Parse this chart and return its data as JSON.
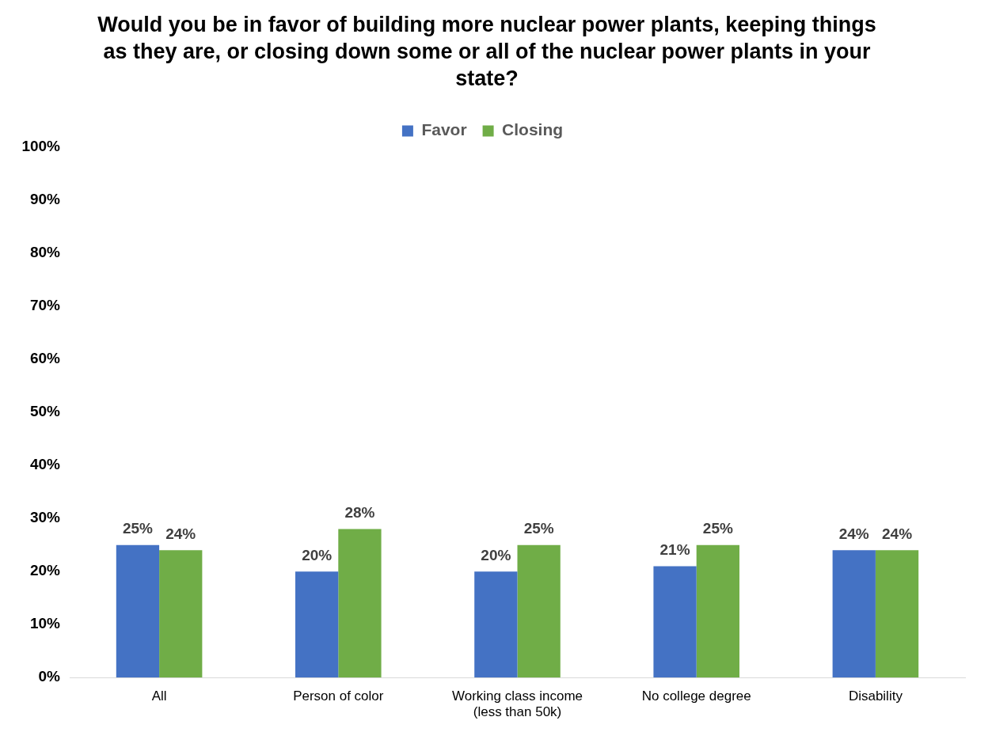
{
  "chart_data": {
    "type": "bar",
    "title": "Would you be in favor of building more nuclear power plants, keeping things as they are, or closing down some or all of the nuclear power plants in your state?",
    "categories": [
      "All",
      "Person of color",
      "Working class income (less than 50k)",
      "No college degree",
      "Disability"
    ],
    "series": [
      {
        "name": "Favor",
        "color": "#4472c4",
        "values": [
          25,
          20,
          20,
          21,
          24
        ],
        "value_labels": [
          "25%",
          "20%",
          "20%",
          "21%",
          "24%"
        ]
      },
      {
        "name": "Closing",
        "color": "#70ad47",
        "values": [
          24,
          28,
          25,
          25,
          24
        ],
        "value_labels": [
          "24%",
          "28%",
          "25%",
          "25%",
          "24%"
        ]
      }
    ],
    "ylim": [
      0,
      100
    ],
    "yticks": [
      {
        "value": 0,
        "label": "0%"
      },
      {
        "value": 10,
        "label": "10%"
      },
      {
        "value": 20,
        "label": "20%"
      },
      {
        "value": 30,
        "label": "30%"
      },
      {
        "value": 40,
        "label": "40%"
      },
      {
        "value": 50,
        "label": "50%"
      },
      {
        "value": 60,
        "label": "60%"
      },
      {
        "value": 70,
        "label": "70%"
      },
      {
        "value": 80,
        "label": "80%"
      },
      {
        "value": 90,
        "label": "90%"
      },
      {
        "value": 100,
        "label": "100%"
      }
    ],
    "grid": false,
    "legend": "top"
  }
}
